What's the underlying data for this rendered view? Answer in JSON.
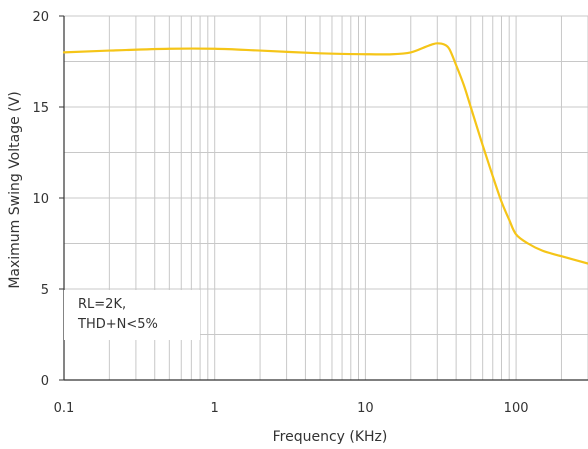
{
  "chart_data": {
    "type": "line",
    "title": "",
    "xlabel": "Frequency (KHz)",
    "ylabel": "Maximum Swing Voltage (V)",
    "xscale": "log",
    "xlim": [
      0.1,
      300
    ],
    "ylim": [
      0,
      20
    ],
    "x_ticks": [
      {
        "value": 0.1,
        "label": "0.1"
      },
      {
        "value": 1,
        "label": "1"
      },
      {
        "value": 10,
        "label": "10"
      },
      {
        "value": 100,
        "label": "100"
      }
    ],
    "y_ticks": [
      {
        "value": 0,
        "label": "0"
      },
      {
        "value": 5,
        "label": "5"
      },
      {
        "value": 10,
        "label": "10"
      },
      {
        "value": 15,
        "label": "15"
      },
      {
        "value": 20,
        "label": "20"
      }
    ],
    "grid": true,
    "line_color": "#f5c518",
    "annotation": {
      "line1": "RL=2K,",
      "line2": "THD+N<5%",
      "placement": "bottom-left"
    },
    "series": [
      {
        "x": [
          0.1,
          0.2,
          0.5,
          1,
          2,
          5,
          10,
          15,
          20,
          25,
          28,
          30,
          33,
          36,
          40,
          45,
          50,
          60,
          70,
          80,
          90,
          100,
          120,
          150,
          200,
          300
        ],
        "y": [
          18.0,
          18.1,
          18.2,
          18.2,
          18.1,
          17.95,
          17.9,
          17.9,
          18.0,
          18.3,
          18.45,
          18.5,
          18.45,
          18.2,
          17.3,
          16.2,
          15.0,
          12.9,
          11.2,
          9.8,
          8.8,
          8.0,
          7.5,
          7.1,
          6.8,
          6.4
        ]
      }
    ]
  }
}
